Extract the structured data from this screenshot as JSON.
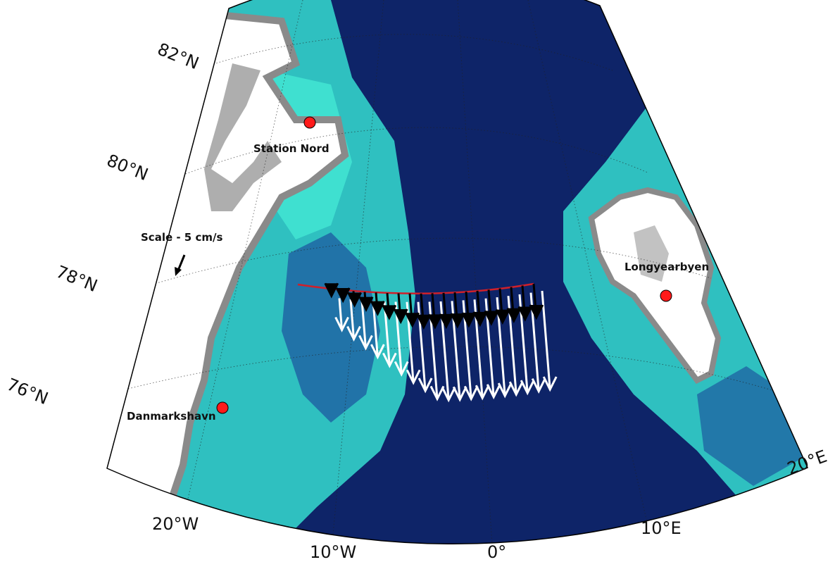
{
  "map": {
    "colors": {
      "land": "#ffffff",
      "deep_ocean": "#0e2468",
      "mid_ocean": "#1d5aa0",
      "shelf": "#2fc0c0",
      "shallow": "#3fe0d0",
      "ice_relief": "#888888",
      "station": "#ff1a1a",
      "section_line": "#d0202a"
    },
    "lat_labels": [
      "82°N",
      "80°N",
      "78°N",
      "76°N"
    ],
    "lon_labels": [
      "20°W",
      "10°W",
      "0°",
      "10°E",
      "20°E"
    ],
    "places": {
      "station_nord": "Station Nord",
      "danmarkshavn": "Danmarkshavn",
      "longyearbyen": "Longyearbyen"
    },
    "scale_label": "Scale - 5 cm/s",
    "arrow_colors": {
      "black": "#000000",
      "white": "#ffffff"
    }
  }
}
